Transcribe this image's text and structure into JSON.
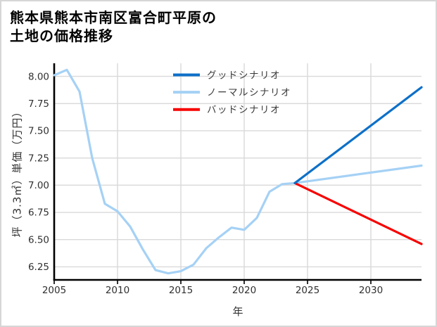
{
  "title": {
    "line1": "熊本県熊本市南区富合町平原の",
    "line2": "土地の価格推移"
  },
  "chart_data": {
    "type": "line",
    "title": "熊本県熊本市南区富合町平原の土地の価格推移",
    "xlabel": "年",
    "ylabel": "坪（3.3㎡）単価（万円）",
    "xlim": [
      2005,
      2034
    ],
    "ylim": [
      6.13,
      8.12
    ],
    "x_ticks": [
      2005,
      2010,
      2015,
      2020,
      2025,
      2030
    ],
    "x_tick_labels": [
      "2005",
      "2010",
      "2015",
      "2020",
      "2025",
      "2030"
    ],
    "y_ticks": [
      6.25,
      6.5,
      6.75,
      7.0,
      7.25,
      7.5,
      7.75,
      8.0
    ],
    "y_tick_labels": [
      "6.25",
      "6.50",
      "6.75",
      "7.00",
      "7.25",
      "7.50",
      "7.75",
      "8.00"
    ],
    "grid": true,
    "legend_position": "upper center",
    "colors": {
      "good": "#0d70c8",
      "normal": "#a5d1f5",
      "bad": "#f70000",
      "grid": "#d9d9d9",
      "spine": "#000000",
      "tick_text": "#303030",
      "legend_text": "#3a3a3a"
    },
    "series": [
      {
        "id": "good",
        "name": "グッドシナリオ",
        "color": "#0d70c8",
        "x": [
          2024,
          2034
        ],
        "values": [
          7.02,
          7.9
        ]
      },
      {
        "id": "normal",
        "name": "ノーマルシナリオ",
        "color": "#a5d1f5",
        "x": [
          2005,
          2006,
          2007,
          2008,
          2009,
          2010,
          2011,
          2012,
          2013,
          2014,
          2015,
          2016,
          2017,
          2018,
          2019,
          2020,
          2021,
          2022,
          2023,
          2024,
          2034
        ],
        "values": [
          8.01,
          8.06,
          7.86,
          7.25,
          6.83,
          6.76,
          6.62,
          6.41,
          6.22,
          6.19,
          6.21,
          6.27,
          6.42,
          6.52,
          6.61,
          6.59,
          6.7,
          6.94,
          7.01,
          7.02,
          7.18
        ]
      },
      {
        "id": "bad",
        "name": "バッドシナリオ",
        "color": "#f70000",
        "x": [
          2024,
          2034
        ],
        "values": [
          7.02,
          6.46
        ]
      }
    ],
    "legend_order": [
      "good",
      "normal",
      "bad"
    ]
  }
}
